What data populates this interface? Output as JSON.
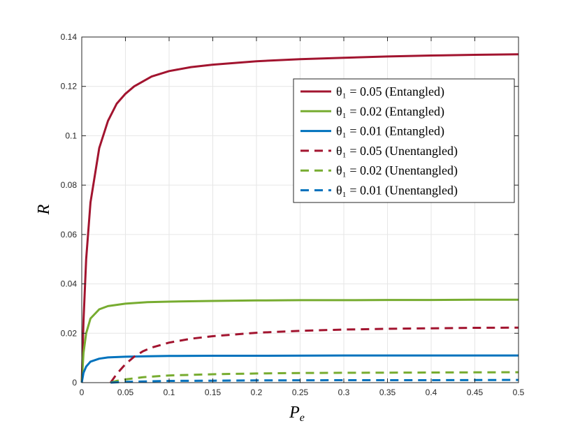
{
  "chart_data": {
    "type": "line",
    "title": "",
    "xlabel": "P",
    "xlabel_sub": "e",
    "ylabel": "R",
    "xlim": [
      0,
      0.5
    ],
    "ylim": [
      0,
      0.14
    ],
    "grid": true,
    "legend_position": "top-right",
    "x_ticks": [
      "0",
      "0.05",
      "0.1",
      "0.15",
      "0.2",
      "0.25",
      "0.3",
      "0.35",
      "0.4",
      "0.45",
      "0.5"
    ],
    "y_ticks": [
      "0",
      "0.02",
      "0.04",
      "0.06",
      "0.08",
      "0.1",
      "0.12",
      "0.14"
    ],
    "x_tick_values": [
      0,
      0.05,
      0.1,
      0.15,
      0.2,
      0.25,
      0.3,
      0.35,
      0.4,
      0.45,
      0.5
    ],
    "y_tick_values": [
      0,
      0.02,
      0.04,
      0.06,
      0.08,
      0.1,
      0.12,
      0.14
    ],
    "series": [
      {
        "name": "θ₁ = 0.05 (Entangled)",
        "color": "#A2142F",
        "style": "solid",
        "x": [
          0,
          0.002,
          0.005,
          0.01,
          0.02,
          0.03,
          0.04,
          0.05,
          0.06,
          0.08,
          0.1,
          0.125,
          0.15,
          0.2,
          0.25,
          0.3,
          0.35,
          0.4,
          0.45,
          0.5
        ],
        "y": [
          0,
          0.025,
          0.05,
          0.073,
          0.095,
          0.106,
          0.113,
          0.117,
          0.12,
          0.124,
          0.1262,
          0.1278,
          0.1288,
          0.1302,
          0.131,
          0.1316,
          0.1321,
          0.1325,
          0.1328,
          0.133
        ]
      },
      {
        "name": "θ₁ = 0.02 (Entangled)",
        "color": "#77AC30",
        "style": "solid",
        "x": [
          0,
          0.002,
          0.005,
          0.01,
          0.02,
          0.03,
          0.05,
          0.075,
          0.1,
          0.15,
          0.2,
          0.25,
          0.3,
          0.35,
          0.4,
          0.45,
          0.5
        ],
        "y": [
          0,
          0.012,
          0.02,
          0.026,
          0.0297,
          0.031,
          0.032,
          0.0326,
          0.0328,
          0.0331,
          0.0333,
          0.0334,
          0.0334,
          0.0335,
          0.0335,
          0.0336,
          0.0336
        ]
      },
      {
        "name": "θ₁ = 0.01 (Entangled)",
        "color": "#0072BD",
        "style": "solid",
        "x": [
          0,
          0.002,
          0.005,
          0.01,
          0.02,
          0.03,
          0.05,
          0.075,
          0.1,
          0.15,
          0.2,
          0.3,
          0.4,
          0.5
        ],
        "y": [
          0,
          0.004,
          0.0065,
          0.0085,
          0.0097,
          0.0102,
          0.0105,
          0.0107,
          0.0108,
          0.0109,
          0.0109,
          0.011,
          0.011,
          0.011
        ]
      },
      {
        "name": "θ₁ = 0.05 (Unentangled)",
        "color": "#A2142F",
        "style": "dashed",
        "x": [
          0.033,
          0.04,
          0.05,
          0.06,
          0.07,
          0.08,
          0.1,
          0.125,
          0.15,
          0.2,
          0.25,
          0.3,
          0.35,
          0.4,
          0.45,
          0.5
        ],
        "y": [
          0,
          0.0035,
          0.0075,
          0.0105,
          0.0127,
          0.0142,
          0.0162,
          0.0178,
          0.0188,
          0.0202,
          0.021,
          0.0215,
          0.0218,
          0.022,
          0.0222,
          0.0223
        ]
      },
      {
        "name": "θ₁ = 0.02 (Unentangled)",
        "color": "#77AC30",
        "style": "dashed",
        "x": [
          0.033,
          0.04,
          0.05,
          0.07,
          0.1,
          0.15,
          0.2,
          0.25,
          0.3,
          0.4,
          0.5
        ],
        "y": [
          0,
          0.0007,
          0.0013,
          0.0022,
          0.0029,
          0.0034,
          0.0037,
          0.0039,
          0.004,
          0.0041,
          0.0042
        ]
      },
      {
        "name": "θ₁ = 0.01 (Unentangled)",
        "color": "#0072BD",
        "style": "dashed",
        "x": [
          0.033,
          0.05,
          0.1,
          0.15,
          0.2,
          0.3,
          0.4,
          0.5
        ],
        "y": [
          0,
          0.0003,
          0.0007,
          0.0008,
          0.0009,
          0.001,
          0.001,
          0.0011
        ]
      }
    ]
  }
}
